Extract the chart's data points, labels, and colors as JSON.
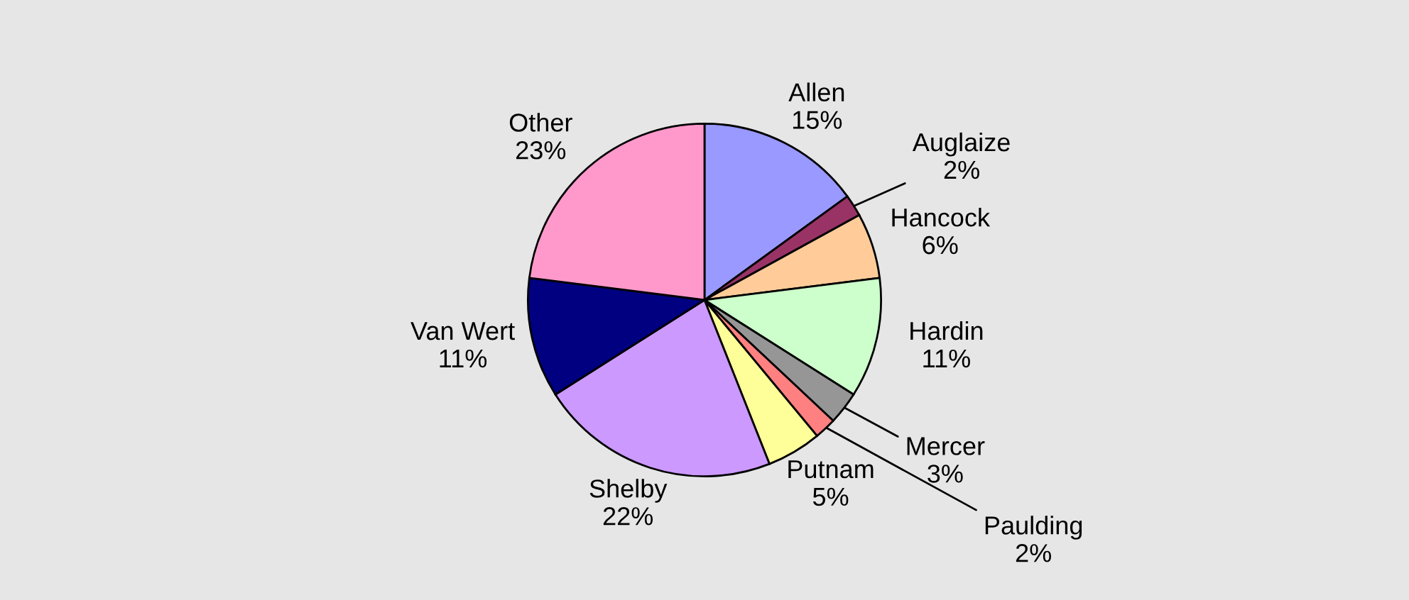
{
  "chart_data": {
    "type": "pie",
    "categories": [
      "Allen",
      "Auglaize",
      "Hancock",
      "Hardin",
      "Mercer",
      "Paulding",
      "Putnam",
      "Shelby",
      "Van Wert",
      "Other"
    ],
    "values": [
      15,
      2,
      6,
      11,
      3,
      2,
      5,
      22,
      11,
      23
    ],
    "value_labels": [
      "15%",
      "2%",
      "6%",
      "11%",
      "3%",
      "2%",
      "5%",
      "22%",
      "11%",
      "23%"
    ],
    "colors": [
      "#9999ff",
      "#993366",
      "#ffcc99",
      "#ccffcc",
      "#969696",
      "#ff8080",
      "#ffff99",
      "#cc99ff",
      "#000080",
      "#ff99cc"
    ],
    "legend": false
  }
}
